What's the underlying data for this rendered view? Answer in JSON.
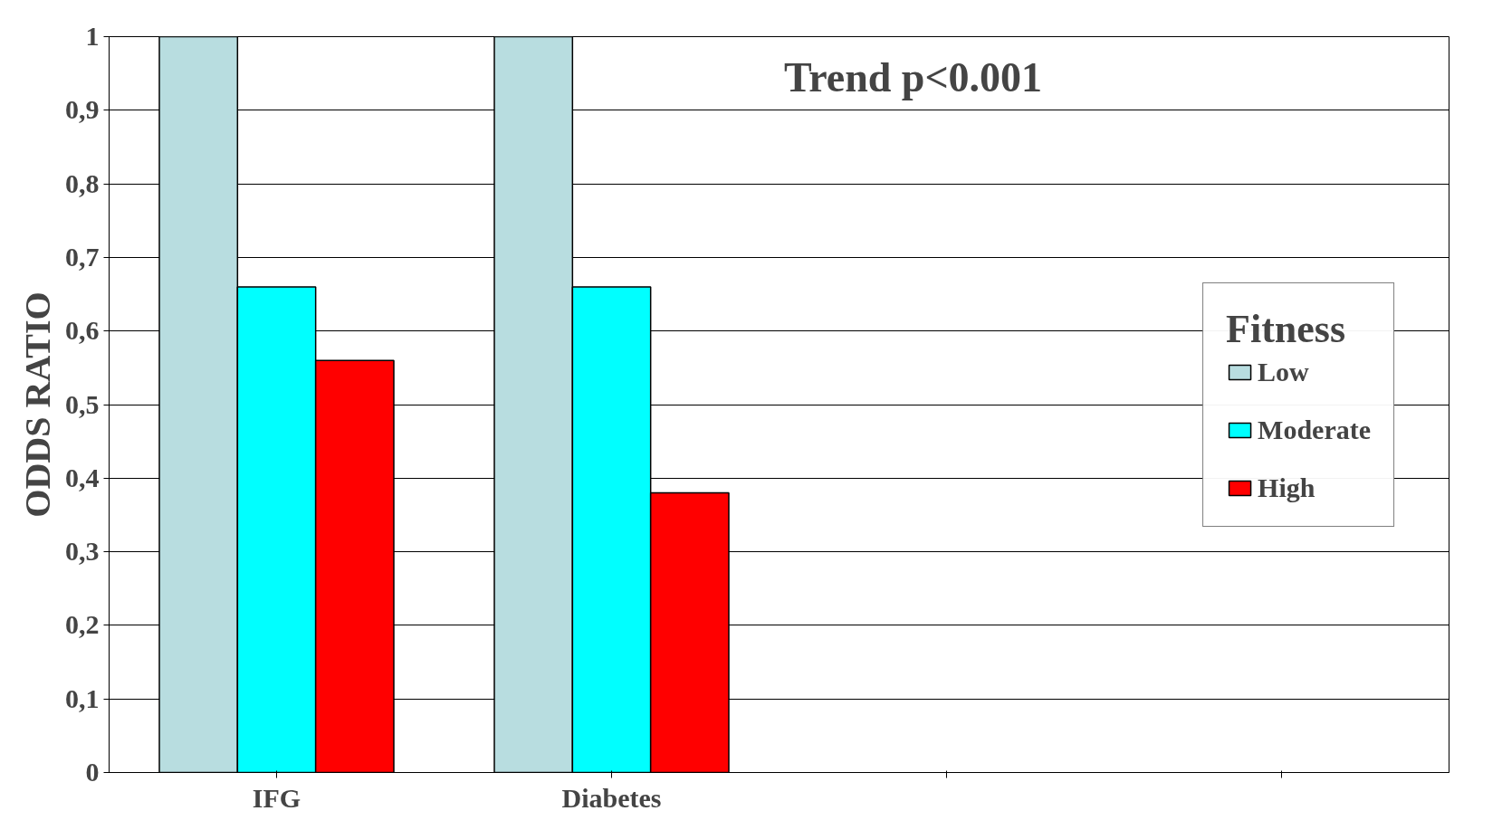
{
  "chart_data": {
    "type": "bar",
    "ylabel": "ODDS RATIO",
    "legend_title": "Fitness",
    "categories": [
      "IFG",
      "Diabetes",
      null,
      null
    ],
    "series": [
      {
        "name": "Low",
        "color": "#b8dde0",
        "values": [
          1,
          1,
          null,
          null
        ]
      },
      {
        "name": "Moderate",
        "color": "#00ffff",
        "values": [
          0.66,
          0.66,
          null,
          null
        ]
      },
      {
        "name": "High",
        "color": "#ff0000",
        "values": [
          0.56,
          0.38,
          null,
          null
        ]
      }
    ],
    "ylim": [
      0,
      1
    ],
    "yticks": [
      0,
      {
        "value": 0.1,
        "label": "0,1"
      },
      {
        "value": 0.2,
        "label": "0,2"
      },
      {
        "value": 0.3,
        "label": "0,3"
      },
      {
        "value": 0.4,
        "label": "0,4"
      },
      {
        "value": 0.5,
        "label": "0,5"
      },
      {
        "value": 0.6,
        "label": "0,6"
      },
      {
        "value": 0.7,
        "label": "0,7"
      },
      {
        "value": 0.8,
        "label": "0,8"
      },
      {
        "value": 0.9,
        "label": "0,9"
      },
      1
    ],
    "grid": "y",
    "legend": "right",
    "annotations": [
      "Trend p<0.001"
    ]
  }
}
